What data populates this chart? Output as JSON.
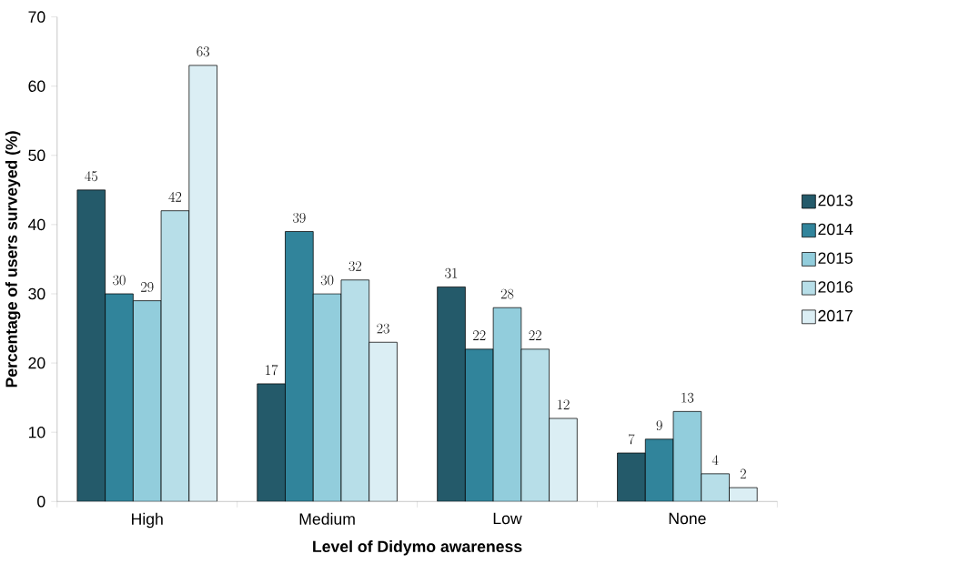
{
  "chart_data": {
    "type": "bar",
    "xlabel": "Level of Didymo awareness",
    "ylabel": "Percentage of users surveyed (%)",
    "categories": [
      "High",
      "Medium",
      "Low",
      "None"
    ],
    "series": [
      {
        "name": "2013",
        "color": "#245a6a",
        "values": [
          45,
          17,
          31,
          7
        ]
      },
      {
        "name": "2014",
        "color": "#31849b",
        "values": [
          30,
          39,
          22,
          9
        ]
      },
      {
        "name": "2015",
        "color": "#92cddc",
        "values": [
          29,
          30,
          28,
          13
        ]
      },
      {
        "name": "2016",
        "color": "#b7dee8",
        "values": [
          42,
          32,
          22,
          4
        ]
      },
      {
        "name": "2017",
        "color": "#dbeef4",
        "values": [
          63,
          23,
          12,
          2
        ]
      }
    ],
    "ylim": [
      0,
      70
    ],
    "yticks": [
      0,
      10,
      20,
      30,
      40,
      50,
      60,
      70
    ],
    "data_labels": true,
    "legend": "right",
    "grid": false
  }
}
